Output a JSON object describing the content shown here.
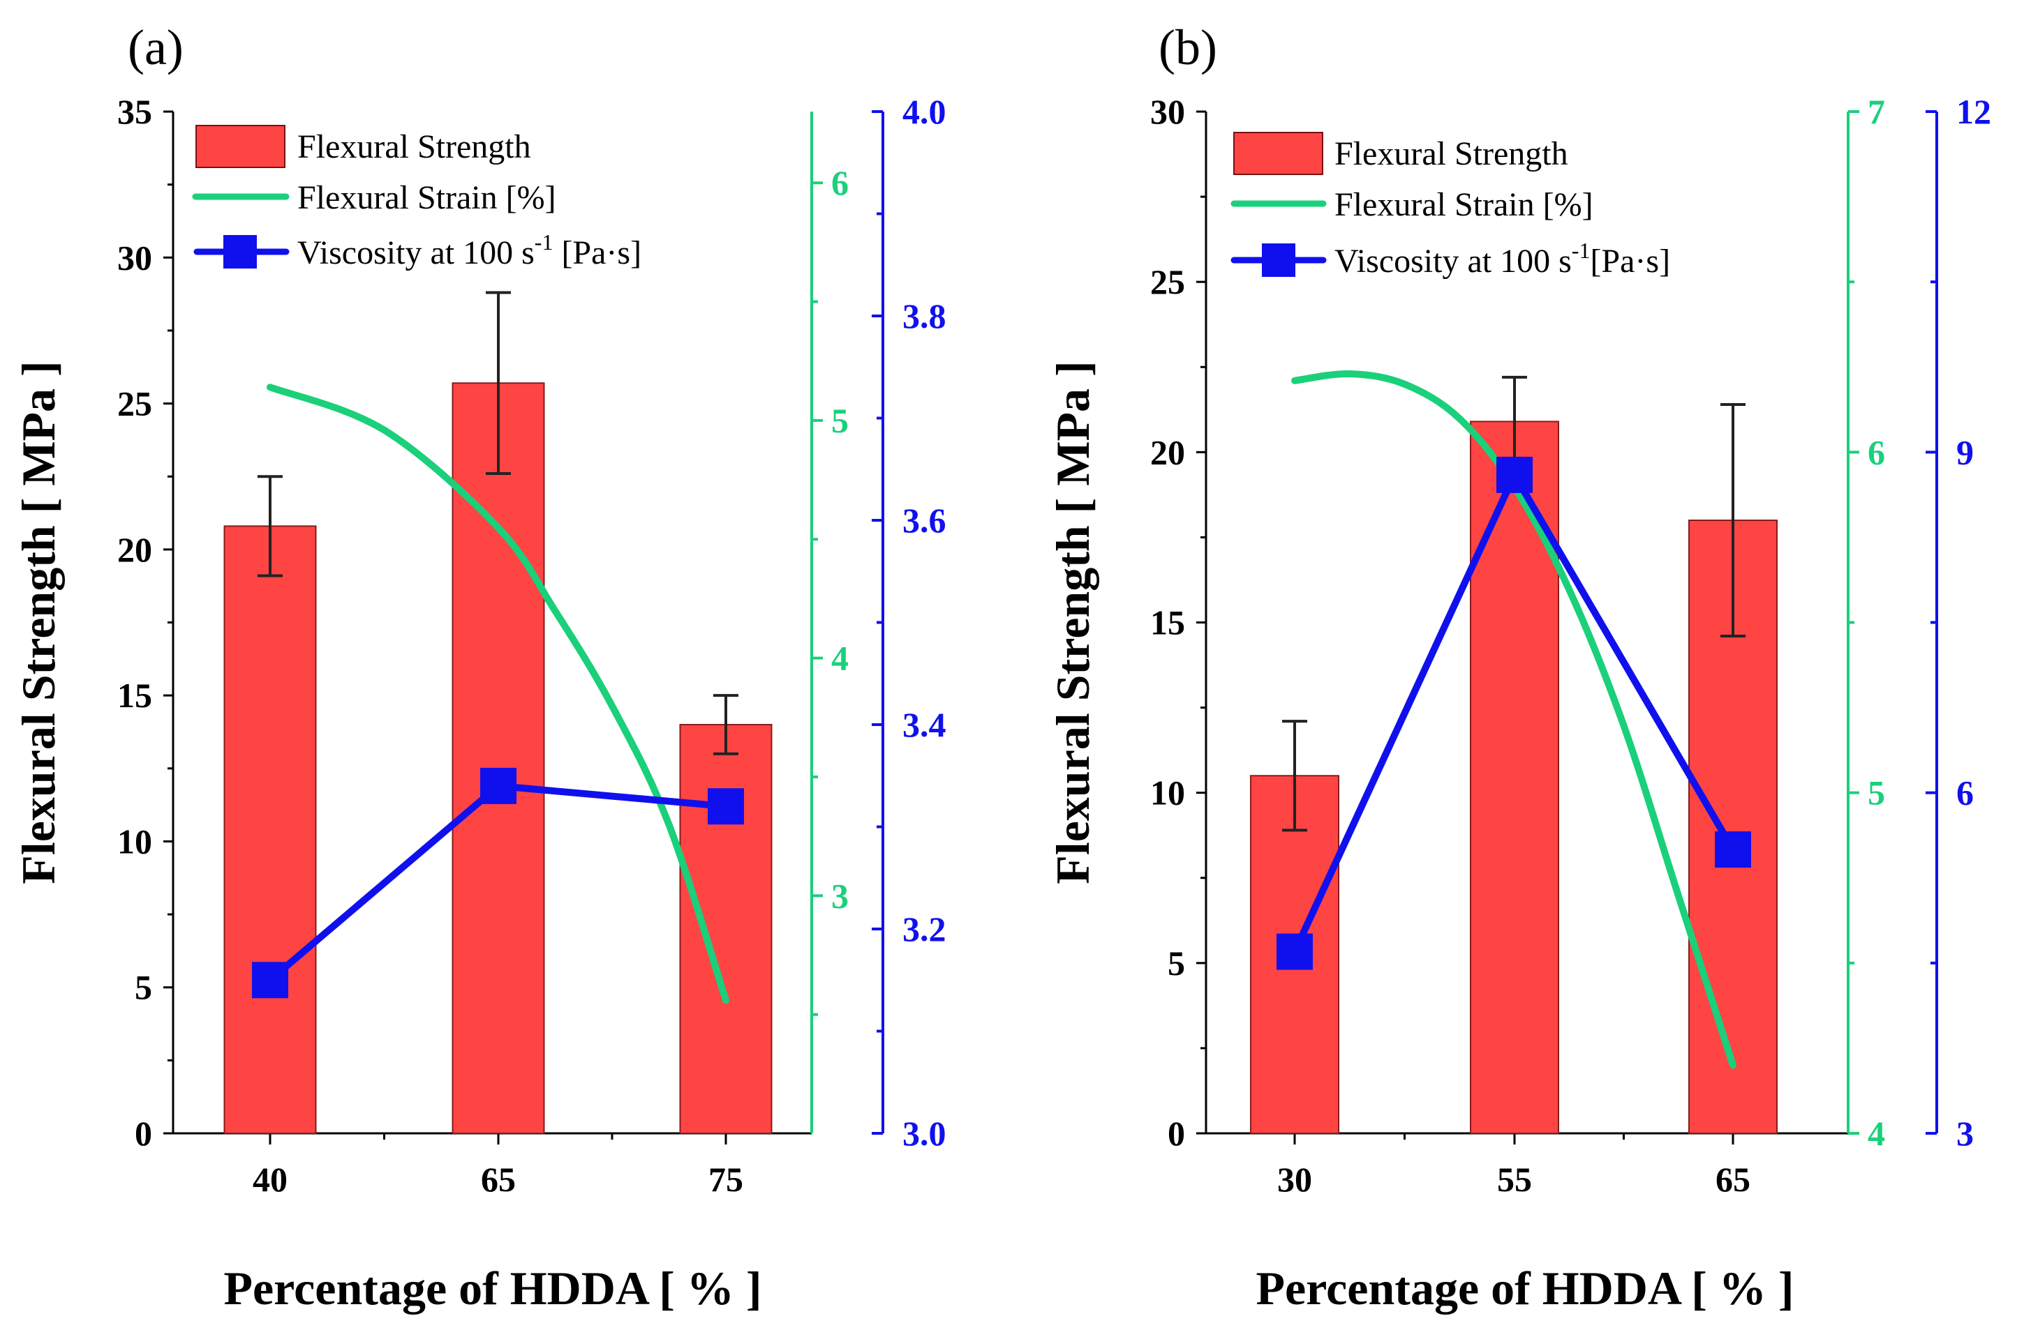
{
  "chart_data": [
    {
      "panel_label": "(a)",
      "type": "bar",
      "categories": [
        "40",
        "65",
        "75"
      ],
      "xlabel": "Percentage of HDDA [ % ]",
      "ylabel": "Flexural Strength [ MPa ]",
      "ylim": [
        0,
        35
      ],
      "y_ticks": [
        0,
        5,
        10,
        15,
        20,
        25,
        30,
        35
      ],
      "y2": {
        "name": "Flexural Strain [%]",
        "color": "#1ad07a",
        "range": [
          2,
          6.3
        ],
        "ticks": [
          3,
          4,
          5,
          6
        ]
      },
      "y3": {
        "name": "Viscosity at 100 s-1 [Pa·s]",
        "color": "#1010ee",
        "range": [
          3.0,
          4.0
        ],
        "ticks": [
          "3.0",
          "3.2",
          "3.4",
          "3.6",
          "3.8",
          "4.0"
        ]
      },
      "series": [
        {
          "name": "Flexural Strength",
          "kind": "bar",
          "axis": "y",
          "color": "#ff4444",
          "values": [
            20.8,
            25.7,
            14.0
          ],
          "errors": [
            1.7,
            3.1,
            1.0
          ]
        },
        {
          "name": "Flexural Strain [%]",
          "kind": "line",
          "axis": "y2",
          "color": "#1ad07a",
          "curve": [
            [
              0,
              5.14
            ],
            [
              0.5,
              4.96
            ],
            [
              1,
              4.55
            ],
            [
              1.25,
              4.2
            ],
            [
              1.5,
              3.8
            ],
            [
              1.75,
              3.3
            ],
            [
              2,
              2.56
            ]
          ]
        },
        {
          "name": "Viscosity at 100 s-1 [Pa·s]",
          "kind": "line",
          "axis": "y3",
          "color": "#1010ee",
          "values": [
            3.15,
            3.34,
            3.32
          ]
        }
      ],
      "legend": {
        "bar_label": "Flexural Strength",
        "strain_label": "Flexural Strain [%]",
        "visc_label_main": "Viscosity at 100 s",
        "visc_label_sup": "-1",
        "visc_label_tail": " [Pa·s]"
      }
    },
    {
      "panel_label": "(b)",
      "type": "bar",
      "categories": [
        "30",
        "55",
        "65"
      ],
      "xlabel": "Percentage of HDDA [ % ]",
      "ylabel": "Flexural Strength [ MPa ]",
      "ylim": [
        0,
        30
      ],
      "y_ticks": [
        0,
        5,
        10,
        15,
        20,
        25,
        30
      ],
      "y2": {
        "name": "Flexural Strain [%]",
        "color": "#1ad07a",
        "range": [
          4,
          7
        ],
        "ticks": [
          4,
          5,
          6,
          7
        ]
      },
      "y3": {
        "name": "Viscosity at 100 s-1[Pa·s]",
        "color": "#1010ee",
        "range": [
          3,
          12
        ],
        "ticks": [
          3,
          6,
          9,
          12
        ]
      },
      "series": [
        {
          "name": "Flexural Strength",
          "kind": "bar",
          "axis": "y",
          "color": "#ff4444",
          "values": [
            10.5,
            20.9,
            18.0
          ],
          "errors": [
            1.6,
            1.3,
            3.4
          ]
        },
        {
          "name": "Flexural Strain [%]",
          "kind": "line",
          "axis": "y2",
          "color": "#1ad07a",
          "curve": [
            [
              0,
              6.21
            ],
            [
              0.25,
              6.23
            ],
            [
              0.5,
              6.2
            ],
            [
              0.75,
              6.1
            ],
            [
              1,
              5.9
            ],
            [
              1.25,
              5.6
            ],
            [
              1.5,
              5.2
            ],
            [
              1.75,
              4.7
            ],
            [
              2,
              4.2
            ]
          ]
        },
        {
          "name": "Viscosity at 100 s-1[Pa·s]",
          "kind": "line",
          "axis": "y3",
          "color": "#1010ee",
          "values": [
            4.6,
            8.8,
            5.5
          ]
        }
      ],
      "legend": {
        "bar_label": "Flexural Strength",
        "strain_label": "Flexural Strain [%]",
        "visc_label_main": "Viscosity at 100 s",
        "visc_label_sup": "-1",
        "visc_label_tail": "[Pa·s]"
      }
    }
  ]
}
